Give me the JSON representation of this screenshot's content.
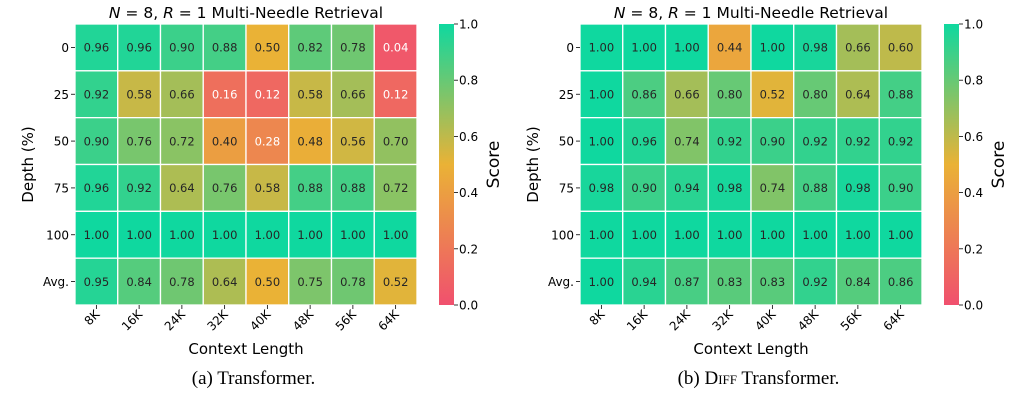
{
  "chart_data": [
    {
      "type": "heatmap",
      "title": "N = 8, R = 1 Multi-Needle Retrieval",
      "title_parts": {
        "n_var": "N",
        "n_val": " = 8, ",
        "r_var": "R",
        "r_val": " = 1 Multi-Needle Retrieval"
      },
      "xlabel": "Context Length",
      "ylabel": "Depth (%)",
      "x_categories": [
        "8K",
        "16K",
        "24K",
        "32K",
        "40K",
        "48K",
        "56K",
        "64K"
      ],
      "y_categories": [
        "0",
        "25",
        "50",
        "75",
        "100",
        "Avg."
      ],
      "values": [
        [
          0.96,
          0.96,
          0.9,
          0.88,
          0.5,
          0.82,
          0.78,
          0.04
        ],
        [
          0.92,
          0.58,
          0.66,
          0.16,
          0.12,
          0.58,
          0.66,
          0.12
        ],
        [
          0.9,
          0.76,
          0.72,
          0.4,
          0.28,
          0.48,
          0.56,
          0.7
        ],
        [
          0.96,
          0.92,
          0.64,
          0.76,
          0.58,
          0.88,
          0.88,
          0.72
        ],
        [
          1.0,
          1.0,
          1.0,
          1.0,
          1.0,
          1.0,
          1.0,
          1.0
        ],
        [
          0.95,
          0.84,
          0.78,
          0.64,
          0.5,
          0.75,
          0.78,
          0.52
        ]
      ],
      "colorbar": {
        "label": "Score",
        "range": [
          0.0,
          1.0
        ],
        "ticks": [
          "0.0",
          "0.2",
          "0.4",
          "0.6",
          "0.8",
          "1.0"
        ]
      },
      "colormap": [
        "#f0506e",
        "#eab236",
        "#0fd89f"
      ],
      "caption": {
        "prefix": "(a) Transformer.",
        "smallcaps": "",
        "suffix": ""
      }
    },
    {
      "type": "heatmap",
      "title": "N = 8, R = 1 Multi-Needle Retrieval",
      "title_parts": {
        "n_var": "N",
        "n_val": " = 8, ",
        "r_var": "R",
        "r_val": " = 1 Multi-Needle Retrieval"
      },
      "xlabel": "Context Length",
      "ylabel": "Depth (%)",
      "x_categories": [
        "8K",
        "16K",
        "24K",
        "32K",
        "40K",
        "48K",
        "56K",
        "64K"
      ],
      "y_categories": [
        "0",
        "25",
        "50",
        "75",
        "100",
        "Avg."
      ],
      "values": [
        [
          1.0,
          1.0,
          1.0,
          0.44,
          1.0,
          0.98,
          0.66,
          0.6
        ],
        [
          1.0,
          0.86,
          0.66,
          0.8,
          0.52,
          0.8,
          0.64,
          0.88
        ],
        [
          1.0,
          0.96,
          0.74,
          0.92,
          0.9,
          0.92,
          0.92,
          0.92
        ],
        [
          0.98,
          0.9,
          0.94,
          0.98,
          0.74,
          0.88,
          0.98,
          0.9
        ],
        [
          1.0,
          1.0,
          1.0,
          1.0,
          1.0,
          1.0,
          1.0,
          1.0
        ],
        [
          1.0,
          0.94,
          0.87,
          0.83,
          0.83,
          0.92,
          0.84,
          0.86
        ]
      ],
      "colorbar": {
        "label": "Score",
        "range": [
          0.0,
          1.0
        ],
        "ticks": [
          "0.0",
          "0.2",
          "0.4",
          "0.6",
          "0.8",
          "1.0"
        ]
      },
      "colormap": [
        "#f0506e",
        "#eab236",
        "#0fd89f"
      ],
      "caption": {
        "prefix": "(b) ",
        "smallcaps": "Diff",
        "suffix": " Transformer."
      }
    }
  ]
}
